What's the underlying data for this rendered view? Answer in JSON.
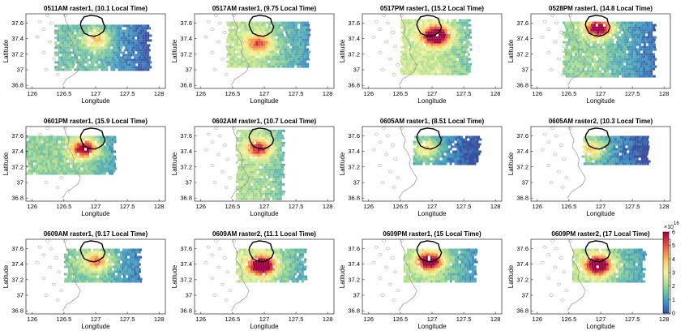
{
  "chart_data": {
    "type": "heatmap",
    "xlabel": "Longitude",
    "ylabel": "Latitude",
    "xlim": [
      125.9,
      128.1
    ],
    "ylim": [
      36.76,
      37.72
    ],
    "xticks": [
      126,
      126.5,
      127,
      127.5,
      128
    ],
    "xtick_labels": [
      "126",
      "126.5",
      "127",
      "127.5",
      "128"
    ],
    "yticks": [
      36.8,
      37,
      37.2,
      37.4,
      37.6
    ],
    "ytick_labels": [
      "36.8",
      "37",
      "37.2",
      "37.4",
      "37.6"
    ],
    "grid": false,
    "colorbar": {
      "position": "right",
      "min": 0,
      "max": 6,
      "ticks": [
        0,
        1,
        2,
        3,
        4,
        5,
        6
      ],
      "tick_labels": [
        "0",
        "1",
        "2",
        "3",
        "4",
        "5",
        "6"
      ],
      "multiplier": "×10",
      "exponent": "16",
      "colormap": [
        "#3a4fa0",
        "#3f8fc4",
        "#6cc0a8",
        "#b8e08e",
        "#f0f5a0",
        "#fbd06a",
        "#f4894a",
        "#d73f3c",
        "#9e0142"
      ]
    },
    "panels": [
      {
        "title": "0511AM raster1, (10.1 Local Time)",
        "coverage": [
          126.35,
          127.85,
          37.0,
          37.58
        ],
        "level": 0.26,
        "hot": [
          127.0,
          37.4,
          0.4
        ]
      },
      {
        "title": "0517AM raster1, (9.75 Local Time)",
        "coverage": [
          126.4,
          127.7,
          37.05,
          37.62
        ],
        "level": 0.38,
        "hot": [
          126.9,
          37.35,
          0.5
        ]
      },
      {
        "title": "0517PM raster1, (15.2 Local Time)",
        "coverage": [
          126.5,
          127.6,
          36.95,
          37.65
        ],
        "level": 0.42,
        "hot": [
          127.05,
          37.45,
          0.95
        ]
      },
      {
        "title": "0528PM raster1, (14.8 Local Time)",
        "coverage": [
          126.4,
          127.85,
          36.92,
          37.62
        ],
        "level": 0.32,
        "hot": [
          126.95,
          37.55,
          0.85
        ]
      },
      {
        "title": "0601PM raster1, (15.9 Local Time)",
        "coverage": [
          125.9,
          127.3,
          37.1,
          37.6
        ],
        "level": 0.32,
        "hot": [
          126.8,
          37.45,
          0.75
        ]
      },
      {
        "title": "0602AM raster1, (10.7 Local Time)",
        "coverage": [
          126.55,
          127.3,
          36.8,
          37.68
        ],
        "level": 0.36,
        "hot": [
          126.9,
          37.45,
          0.6
        ]
      },
      {
        "title": "0605AM raster1, (8.51 Local Time)",
        "coverage": [
          126.7,
          127.75,
          37.25,
          37.6
        ],
        "level": 0.22,
        "hot": [
          126.9,
          37.45,
          0.35
        ]
      },
      {
        "title": "0605AM raster2, (10.3 Local Time)",
        "coverage": [
          126.7,
          127.75,
          37.25,
          37.6
        ],
        "level": 0.24,
        "hot": [
          126.85,
          37.45,
          0.4
        ]
      },
      {
        "title": "0609AM raster1, (9.17 Local Time)",
        "coverage": [
          126.5,
          127.7,
          37.18,
          37.6
        ],
        "level": 0.3,
        "hot": [
          127.0,
          37.45,
          0.5
        ]
      },
      {
        "title": "0609AM raster2, (11.1 Local Time)",
        "coverage": [
          126.55,
          127.65,
          37.18,
          37.6
        ],
        "level": 0.4,
        "hot": [
          126.95,
          37.4,
          0.95
        ]
      },
      {
        "title": "0609PM raster1, (15 Local Time)",
        "coverage": [
          126.55,
          127.7,
          37.18,
          37.6
        ],
        "level": 0.36,
        "hot": [
          126.95,
          37.45,
          0.85
        ]
      },
      {
        "title": "0609PM raster2, (17 Local Time)",
        "coverage": [
          126.55,
          127.7,
          37.18,
          37.6
        ],
        "level": 0.38,
        "hot": [
          126.95,
          37.4,
          0.95
        ]
      }
    ],
    "boundary_outline": [
      [
        126.77,
        37.62
      ],
      [
        126.82,
        37.68
      ],
      [
        126.92,
        37.7
      ],
      [
        127.02,
        37.69
      ],
      [
        127.1,
        37.66
      ],
      [
        127.12,
        37.6
      ],
      [
        127.15,
        37.55
      ],
      [
        127.12,
        37.49
      ],
      [
        127.05,
        37.45
      ],
      [
        126.98,
        37.43
      ],
      [
        126.9,
        37.44
      ],
      [
        126.82,
        37.47
      ],
      [
        126.78,
        37.53
      ],
      [
        126.76,
        37.58
      ]
    ],
    "coastline": [
      [
        126.5,
        37.76
      ],
      [
        126.52,
        37.64
      ],
      [
        126.58,
        37.55
      ],
      [
        126.55,
        37.46
      ],
      [
        126.62,
        37.38
      ],
      [
        126.66,
        37.3
      ],
      [
        126.64,
        37.22
      ],
      [
        126.7,
        37.14
      ],
      [
        126.76,
        37.06
      ],
      [
        126.72,
        36.98
      ],
      [
        126.62,
        36.92
      ],
      [
        126.54,
        36.88
      ],
      [
        126.48,
        36.8
      ]
    ],
    "islands": [
      [
        126.12,
        37.62
      ],
      [
        126.3,
        37.6
      ],
      [
        126.18,
        37.52
      ],
      [
        126.38,
        37.48
      ],
      [
        126.08,
        37.42
      ],
      [
        126.28,
        37.36
      ],
      [
        126.42,
        37.3
      ],
      [
        126.18,
        37.22
      ],
      [
        126.34,
        37.14
      ],
      [
        126.46,
        37.06
      ],
      [
        126.22,
        37.0
      ],
      [
        126.4,
        36.94
      ],
      [
        126.52,
        37.7
      ],
      [
        126.24,
        37.7
      ]
    ]
  }
}
